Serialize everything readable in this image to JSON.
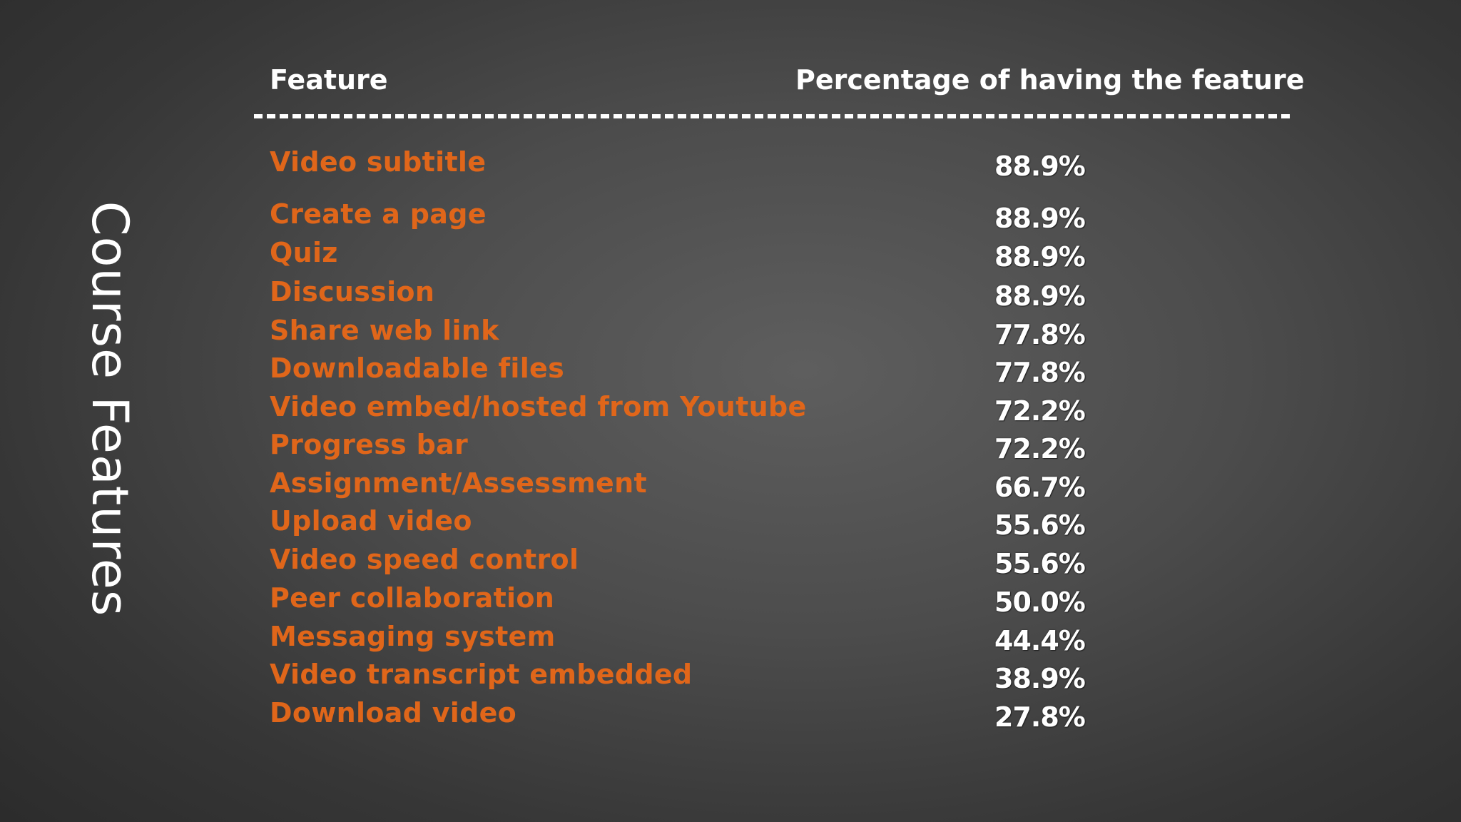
{
  "slide": {
    "side_title": "Course Features"
  },
  "table": {
    "header": {
      "feature": "Feature",
      "percentage": "Percentage of having the feature"
    },
    "rows": [
      {
        "feature": "Video subtitle",
        "percentage": "88.9%"
      },
      {
        "feature": "Create a page",
        "percentage": "88.9%"
      },
      {
        "feature": "Quiz",
        "percentage": "88.9%"
      },
      {
        "feature": "Discussion",
        "percentage": "88.9%"
      },
      {
        "feature": "Share web link",
        "percentage": "77.8%"
      },
      {
        "feature": "Downloadable files",
        "percentage": "77.8%"
      },
      {
        "feature": "Video embed/hosted from Youtube",
        "percentage": "72.2%"
      },
      {
        "feature": "Progress bar",
        "percentage": "72.2%"
      },
      {
        "feature": "Assignment/Assessment",
        "percentage": "66.7%"
      },
      {
        "feature": "Upload video",
        "percentage": "55.6%"
      },
      {
        "feature": "Video speed control",
        "percentage": "55.6%"
      },
      {
        "feature": "Peer collaboration",
        "percentage": "50.0%"
      },
      {
        "feature": "Messaging system",
        "percentage": "44.4%"
      },
      {
        "feature": "Video transcript embedded",
        "percentage": "38.9%"
      },
      {
        "feature": "Download video",
        "percentage": "27.8%"
      }
    ]
  },
  "colors": {
    "feature_text": "#e0661a",
    "percentage_text": "#ffffff",
    "header_text": "#ffffff",
    "background": "#4c4c4c"
  }
}
